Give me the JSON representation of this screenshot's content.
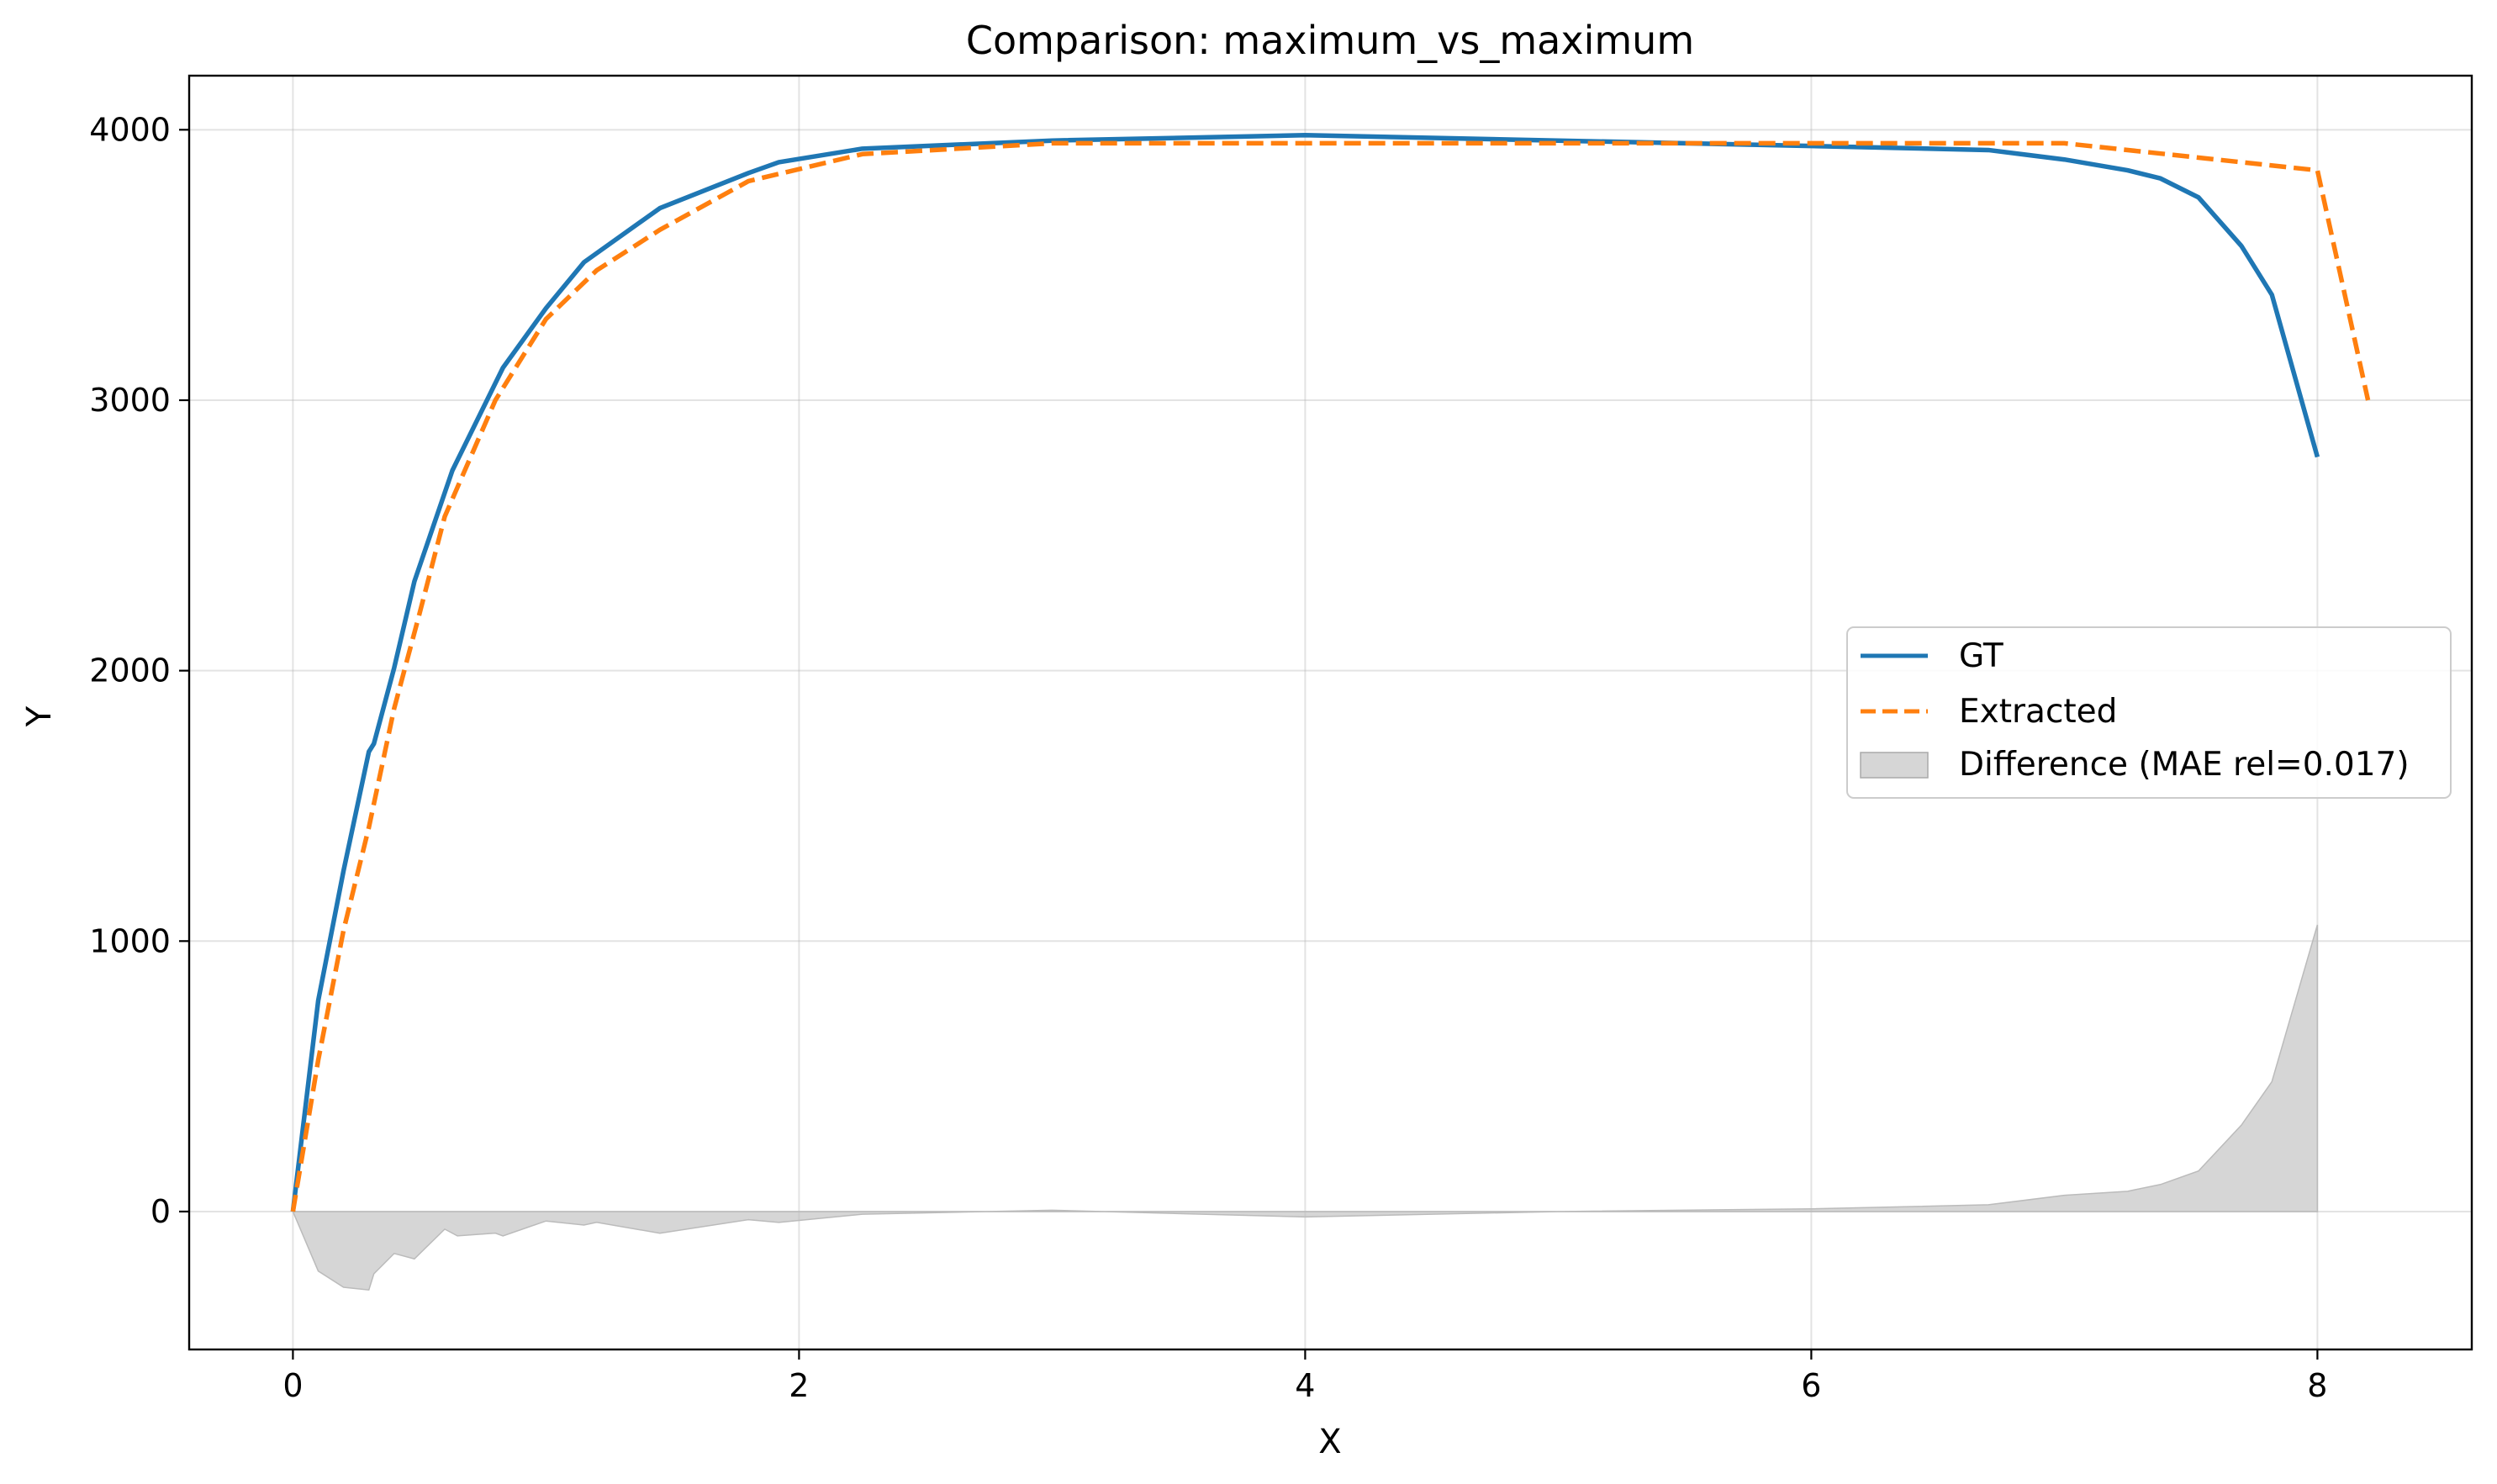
{
  "chart_data": {
    "type": "line",
    "title": "Comparison: maximum_vs_maximum",
    "xlabel": "X",
    "ylabel": "Y",
    "xlim": [
      -0.41,
      8.61
    ],
    "ylim": [
      -510,
      4200
    ],
    "xticks": [
      0,
      2,
      4,
      6,
      8
    ],
    "yticks": [
      0,
      1000,
      2000,
      3000,
      4000
    ],
    "xtick_labels": [
      "0",
      "2",
      "4",
      "6",
      "8"
    ],
    "ytick_labels": [
      "0",
      "1000",
      "2000",
      "3000",
      "4000"
    ],
    "grid": true,
    "legend_position": "center-right",
    "series": [
      {
        "name": "GT",
        "style": "solid",
        "color": "#1f77b4",
        "x": [
          0,
          0.1,
          0.2,
          0.3,
          0.32,
          0.4,
          0.48,
          0.63,
          0.83,
          1.0,
          1.15,
          1.45,
          1.8,
          1.92,
          2.25,
          3.0,
          4.0,
          5.0,
          6.0,
          6.7,
          7.0,
          7.25,
          7.38,
          7.53,
          7.7,
          7.82,
          8.0
        ],
        "y": [
          0,
          780,
          1260,
          1700,
          1730,
          2010,
          2330,
          2740,
          3120,
          3340,
          3510,
          3710,
          3840,
          3880,
          3930,
          3960,
          3980,
          3960,
          3940,
          3925,
          3890,
          3850,
          3820,
          3750,
          3570,
          3390,
          2790
        ]
      },
      {
        "name": "Extracted",
        "style": "dashed",
        "color": "#ff7f0e",
        "x": [
          0,
          0.1,
          0.2,
          0.3,
          0.4,
          0.5,
          0.6,
          0.8,
          1.0,
          1.2,
          1.45,
          1.8,
          2.25,
          3.0,
          4.0,
          5.0,
          6.0,
          7.0,
          7.5,
          8.0,
          8.2
        ],
        "y": [
          0,
          560,
          1040,
          1420,
          1860,
          2210,
          2570,
          3000,
          3300,
          3480,
          3630,
          3810,
          3910,
          3950,
          3950,
          3950,
          3950,
          3950,
          3900,
          3850,
          3000
        ]
      }
    ],
    "difference": {
      "name": "Difference (MAE rel=0.017)",
      "color": "#bbbbbb",
      "x": [
        0,
        0.1,
        0.2,
        0.3,
        0.32,
        0.4,
        0.48,
        0.6,
        0.65,
        0.8,
        0.83,
        1.0,
        1.15,
        1.2,
        1.45,
        1.8,
        1.92,
        2.25,
        3.0,
        4.0,
        5.0,
        6.0,
        6.7,
        7.0,
        7.25,
        7.38,
        7.53,
        7.7,
        7.82,
        8.0
      ],
      "y": [
        0,
        -220,
        -280,
        -290,
        -230,
        -155,
        -175,
        -65,
        -90,
        -80,
        -90,
        -35,
        -50,
        -40,
        -80,
        -30,
        -40,
        -10,
        5,
        -20,
        0,
        10,
        25,
        60,
        75,
        100,
        150,
        320,
        480,
        1060
      ]
    }
  }
}
